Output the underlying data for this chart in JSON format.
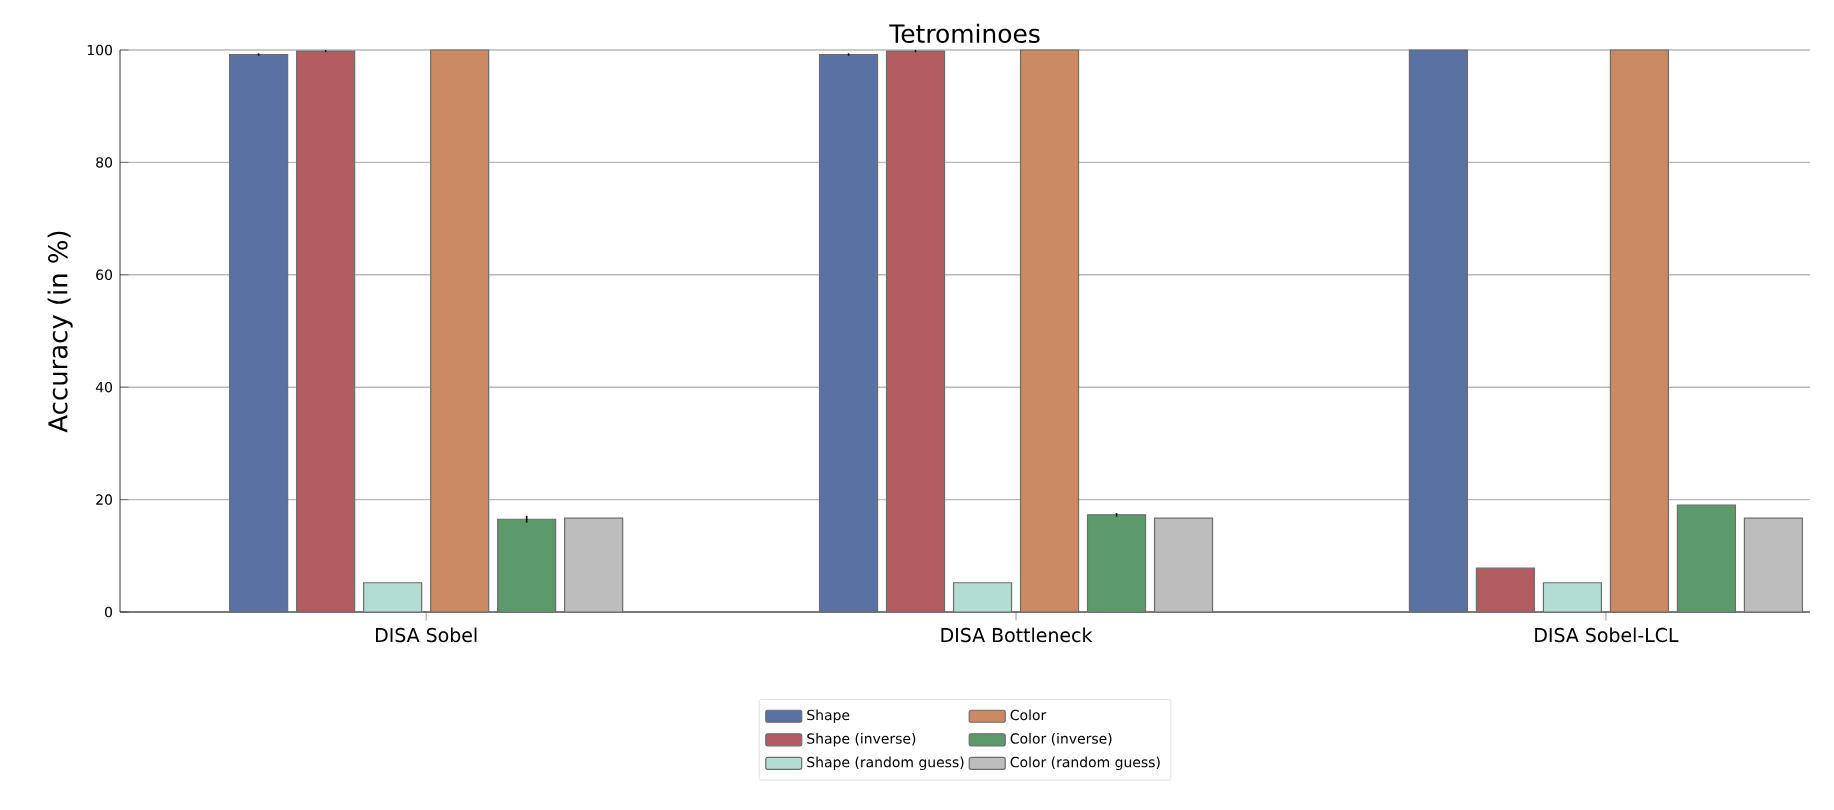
{
  "chart_data": {
    "type": "bar",
    "title": "Tetrominoes",
    "ylabel": "Accuracy (in %)",
    "categories": [
      "DISA Sobel",
      "DISA Bottleneck",
      "DISA Sobel-LCL"
    ],
    "series": [
      {
        "name": "Shape",
        "color": "#5a72a3",
        "values": [
          99.2,
          99.2,
          100
        ],
        "errors": [
          0.2,
          0.2,
          null
        ]
      },
      {
        "name": "Shape (inverse)",
        "color": "#b35c62",
        "values": [
          99.8,
          99.8,
          7.8
        ],
        "errors": [
          0.2,
          0.2,
          null
        ]
      },
      {
        "name": "Shape (random guess)",
        "color": "#b3ddd4",
        "values": [
          5.2,
          5.2,
          5.2
        ]
      },
      {
        "name": "Color",
        "color": "#cb8a63",
        "values": [
          100,
          100,
          100
        ]
      },
      {
        "name": "Color (inverse)",
        "color": "#5c9a6c",
        "values": [
          16.5,
          17.3,
          19.0
        ],
        "errors": [
          0.6,
          0.3,
          null
        ]
      },
      {
        "name": "Color (random guess)",
        "color": "#bdbdbd",
        "values": [
          16.7,
          16.7,
          16.7
        ]
      }
    ],
    "ylim": [
      0,
      100
    ],
    "yticks": [
      0,
      20,
      40,
      60,
      80,
      100
    ],
    "grid": "y",
    "legend": "bottom"
  }
}
